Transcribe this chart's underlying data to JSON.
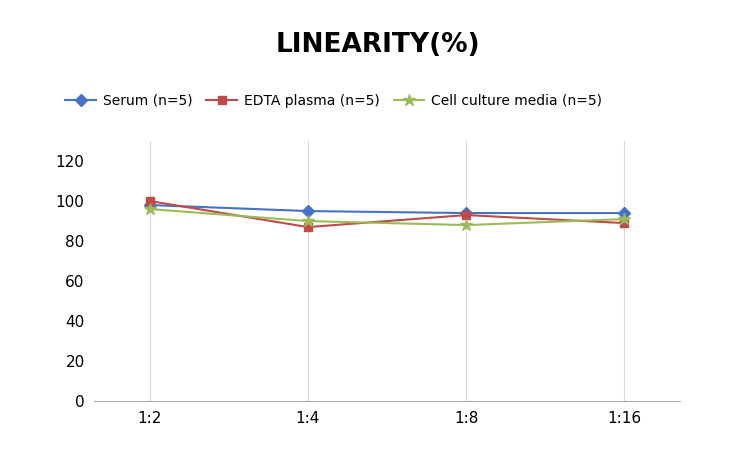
{
  "title": "LINEARITY(%)",
  "title_fontsize": 19,
  "title_fontweight": "bold",
  "x_labels": [
    "1:2",
    "1:4",
    "1:8",
    "1:16"
  ],
  "x_values": [
    0,
    1,
    2,
    3
  ],
  "series": [
    {
      "label": "Serum (n=5)",
      "values": [
        98,
        95,
        94,
        94
      ],
      "color": "#4472C4",
      "marker": "D",
      "markersize": 6,
      "linewidth": 1.5
    },
    {
      "label": "EDTA plasma (n=5)",
      "values": [
        100,
        87,
        93,
        89
      ],
      "color": "#BE4B48",
      "marker": "s",
      "markersize": 6,
      "linewidth": 1.5
    },
    {
      "label": "Cell culture media (n=5)",
      "values": [
        96,
        90,
        88,
        91
      ],
      "color": "#9BBB59",
      "marker": "*",
      "markersize": 9,
      "linewidth": 1.5
    }
  ],
  "ylim": [
    0,
    130
  ],
  "yticks": [
    0,
    20,
    40,
    60,
    80,
    100,
    120
  ],
  "grid_color": "#D9D9D9",
  "grid_linewidth": 0.8,
  "background_color": "#FFFFFF",
  "legend_fontsize": 10,
  "tick_fontsize": 11,
  "axis_linecolor": "#AAAAAA"
}
